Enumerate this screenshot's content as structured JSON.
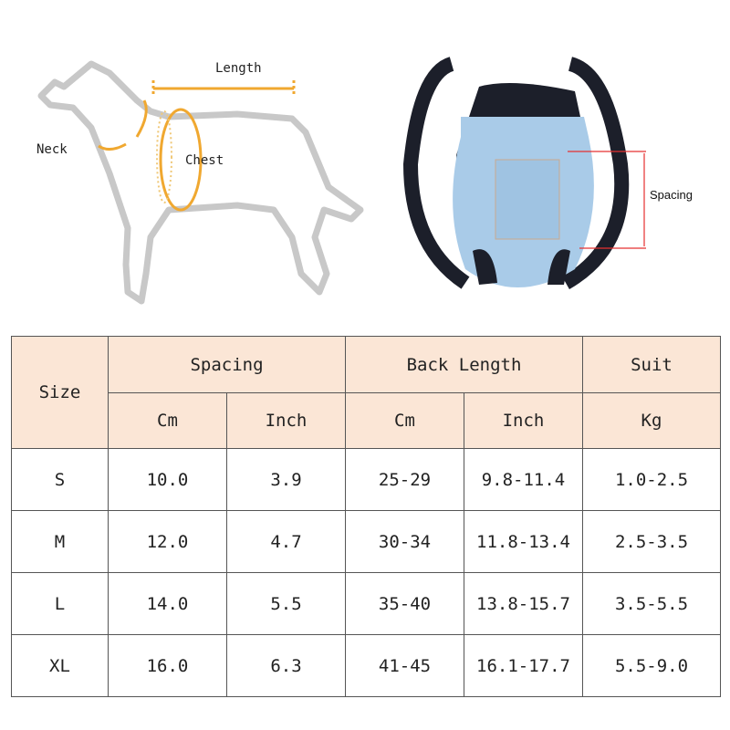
{
  "diagram": {
    "dog_labels": {
      "length": "Length",
      "neck": "Neck",
      "chest": "Chest"
    },
    "carrier_label": "Spacing",
    "colors": {
      "arrow": "#f0a830",
      "outline": "#c8c8c8",
      "carrier_blue": "#a9cbe8",
      "strap": "#1c1f2a",
      "measure": "#e53030"
    }
  },
  "table": {
    "header": {
      "size": "Size",
      "spacing": "Spacing",
      "back_length": "Back Length",
      "suit": "Suit",
      "units": [
        "Cm",
        "Inch",
        "Cm",
        "Inch",
        "Kg"
      ]
    },
    "rows": [
      {
        "size": "S",
        "spacing_cm": "10.0",
        "spacing_inch": "3.9",
        "back_cm": "25-29",
        "back_inch": "9.8-11.4",
        "suit_kg": "1.0-2.5"
      },
      {
        "size": "M",
        "spacing_cm": "12.0",
        "spacing_inch": "4.7",
        "back_cm": "30-34",
        "back_inch": "11.8-13.4",
        "suit_kg": "2.5-3.5"
      },
      {
        "size": "L",
        "spacing_cm": "14.0",
        "spacing_inch": "5.5",
        "back_cm": "35-40",
        "back_inch": "13.8-15.7",
        "suit_kg": "3.5-5.5"
      },
      {
        "size": "XL",
        "spacing_cm": "16.0",
        "spacing_inch": "6.3",
        "back_cm": "41-45",
        "back_inch": "16.1-17.7",
        "suit_kg": "5.5-9.0"
      }
    ],
    "header_bg": "#fbe6d6"
  }
}
